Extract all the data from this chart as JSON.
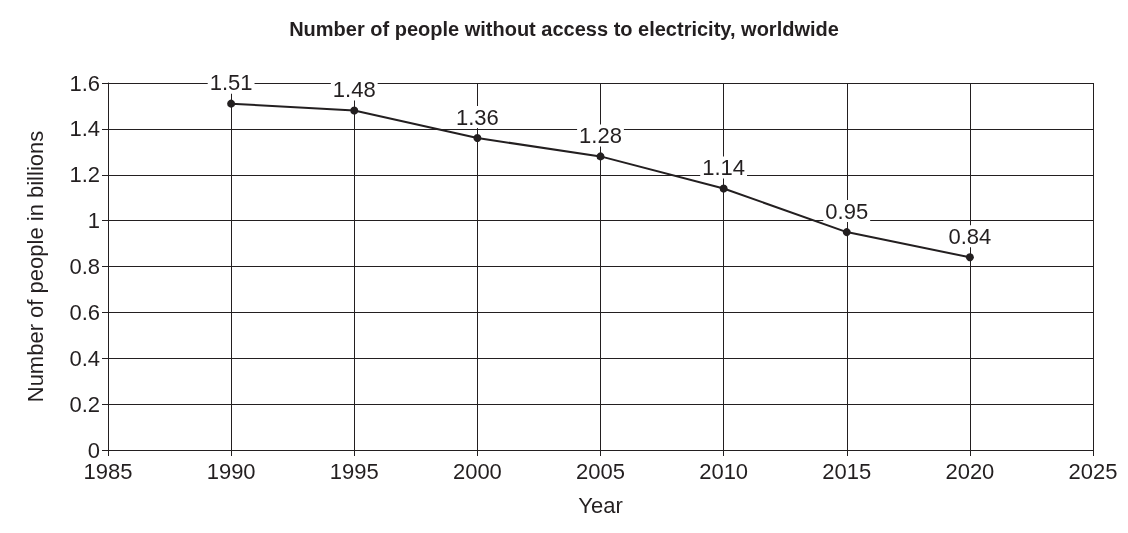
{
  "chart_data": {
    "type": "line",
    "title": "Number of people without access to electricity, worldwide",
    "xlabel": "Year",
    "ylabel": "Number of people in billions",
    "x": [
      1990,
      1995,
      2000,
      2005,
      2010,
      2015,
      2020
    ],
    "series": [
      {
        "color": "#231f20",
        "values": [
          1.51,
          1.48,
          1.36,
          1.28,
          1.14,
          0.95,
          0.84
        ]
      }
    ],
    "xlim": [
      1985,
      2025
    ],
    "xticks": [
      1985,
      1990,
      1995,
      2000,
      2005,
      2010,
      2015,
      2020,
      2025
    ],
    "ylim": [
      0,
      1.6
    ],
    "yticks": [
      0,
      0.2,
      0.4,
      0.6,
      0.8,
      1,
      1.2,
      1.4,
      1.6
    ],
    "grid": true,
    "marker": "circle",
    "line_style": "solid",
    "data_labels": true
  }
}
